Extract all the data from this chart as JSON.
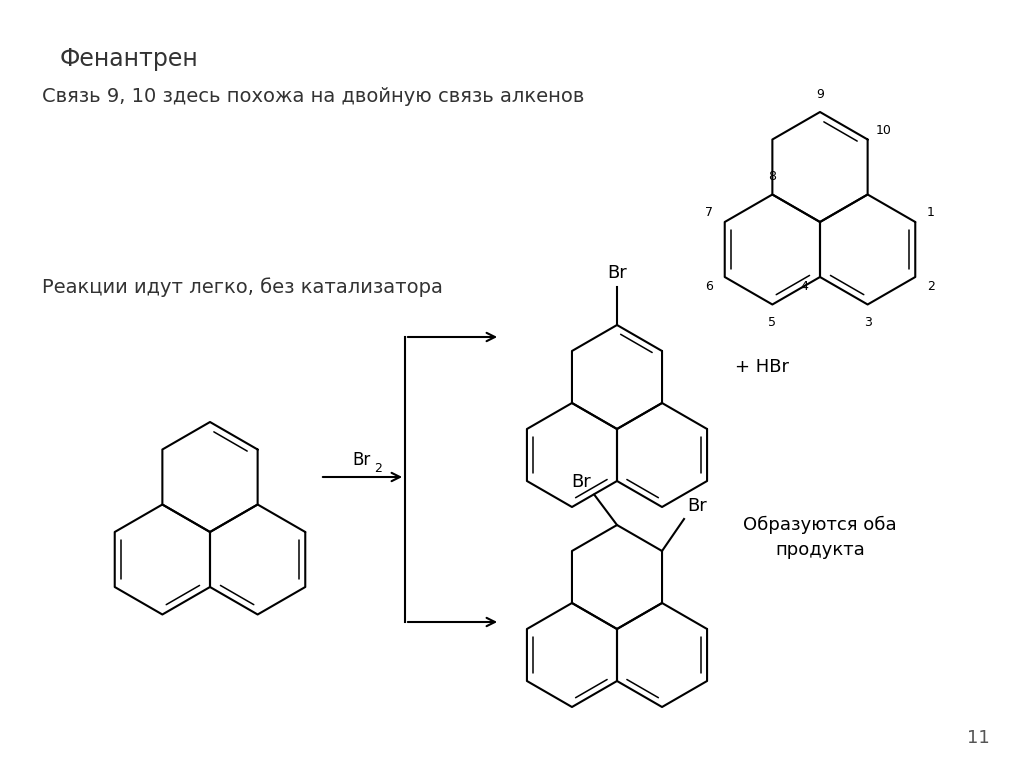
{
  "title": "Фенантрен",
  "subtitle": "Связь 9, 10 здесь похожа на двойную связь алкенов",
  "reaction_text": "Реакции идут легко, без катализатора",
  "reagent": "Br",
  "product1_label": "+ HBr",
  "product2_label": "Образуются оба\nпродукта",
  "page_number": "11",
  "bg_color": "#ffffff",
  "line_color": "#000000",
  "text_color": "#333333",
  "font_size_title": 17,
  "font_size_body": 14,
  "font_size_label": 12,
  "font_size_small": 10
}
